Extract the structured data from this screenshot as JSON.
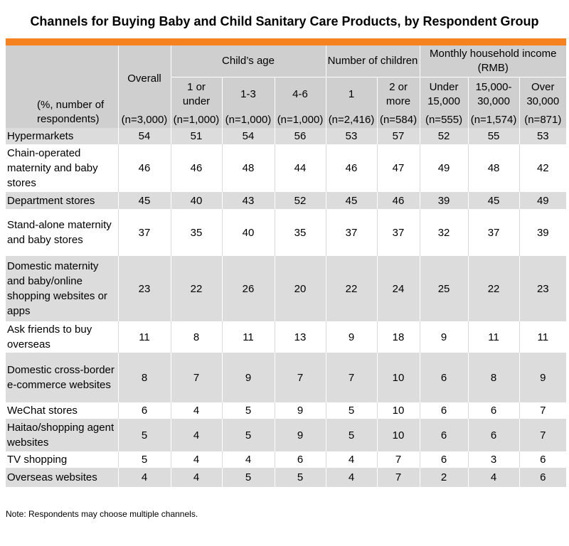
{
  "title": "Channels for Buying Baby and Child Sanitary Care Products, by Respondent Group",
  "note": "Note: Respondents may choose multiple channels.",
  "header": {
    "row_label": "(%, number of respondents)",
    "overall": "Overall",
    "groups": [
      {
        "label": "Child’s age"
      },
      {
        "label": "Number of children"
      },
      {
        "label": "Monthly household income (RMB)"
      }
    ],
    "subcols": [
      "1 or under",
      "1-3",
      "4-6",
      "1",
      "2 or more",
      "Under 15,000",
      "15,000-30,000",
      "Over 30,000"
    ],
    "ns": [
      "(n=3,000)",
      "(n=1,000)",
      "(n=1,000)",
      "(n=1,000)",
      "(n=2,416)",
      "(n=584)",
      "(n=555)",
      "(n=1,574)",
      "(n=871)"
    ]
  },
  "chart_data": {
    "type": "table",
    "title": "Channels for Buying Baby and Child Sanitary Care Products, by Respondent Group",
    "columns": [
      "Overall",
      "1 or under",
      "1-3",
      "4-6",
      "1",
      "2 or more",
      "Under 15,000",
      "15,000-30,000",
      "Over 30,000"
    ],
    "rows": [
      {
        "label": "Hypermarkets",
        "values": [
          54,
          51,
          54,
          56,
          53,
          57,
          52,
          55,
          53
        ]
      },
      {
        "label": "Chain-operated maternity and baby stores",
        "values": [
          46,
          46,
          48,
          44,
          46,
          47,
          49,
          48,
          42
        ]
      },
      {
        "label": "Department stores",
        "values": [
          45,
          40,
          43,
          52,
          45,
          46,
          39,
          45,
          49
        ]
      },
      {
        "label": "Stand-alone maternity and baby stores",
        "values": [
          37,
          35,
          40,
          35,
          37,
          37,
          32,
          37,
          39
        ]
      },
      {
        "label": "Domestic maternity and baby/online shopping websites or apps",
        "values": [
          23,
          22,
          26,
          20,
          22,
          24,
          25,
          22,
          23
        ]
      },
      {
        "label": "Ask friends to buy overseas",
        "values": [
          11,
          8,
          11,
          13,
          9,
          18,
          9,
          11,
          11
        ]
      },
      {
        "label": "Domestic cross-border e-commerce websites",
        "values": [
          8,
          7,
          9,
          7,
          7,
          10,
          6,
          8,
          9
        ]
      },
      {
        "label": "WeChat stores",
        "values": [
          6,
          4,
          5,
          9,
          5,
          10,
          6,
          6,
          7
        ]
      },
      {
        "label": "Haitao/shopping agent websites",
        "values": [
          5,
          4,
          5,
          9,
          5,
          10,
          6,
          6,
          7
        ]
      },
      {
        "label": "TV shopping",
        "values": [
          5,
          4,
          4,
          6,
          4,
          7,
          6,
          3,
          6
        ]
      },
      {
        "label": "Overseas websites",
        "values": [
          4,
          4,
          5,
          5,
          4,
          7,
          2,
          4,
          6
        ]
      }
    ]
  }
}
